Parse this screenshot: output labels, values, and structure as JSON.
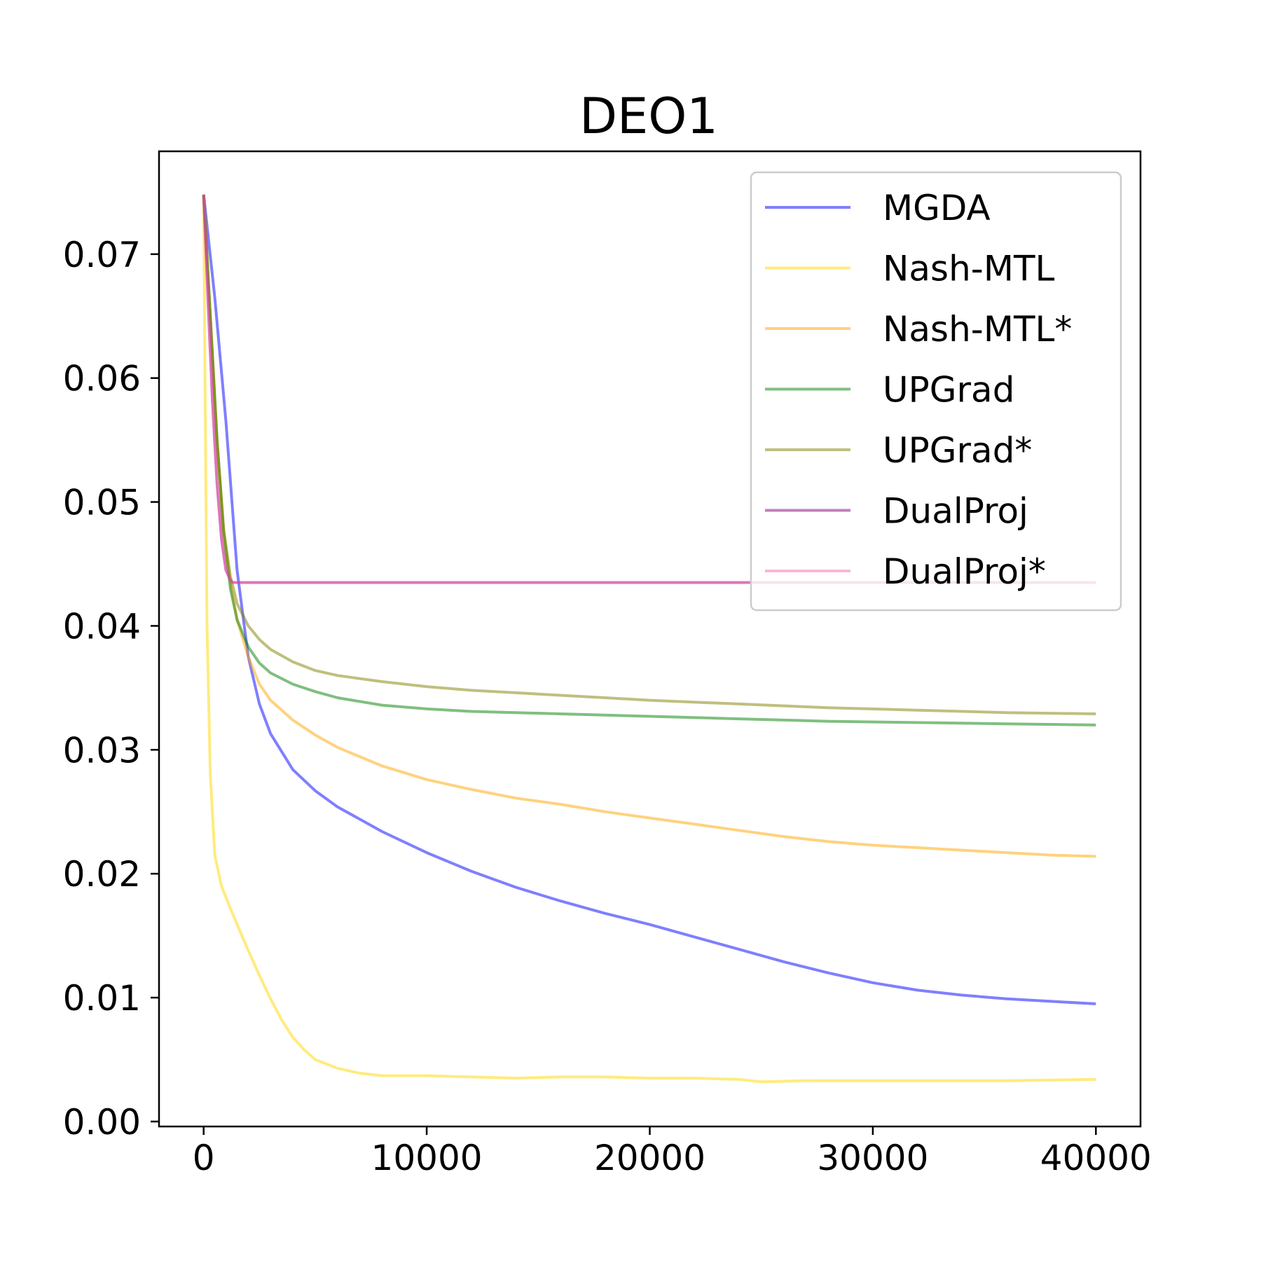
{
  "chart_data": {
    "type": "line",
    "title": "DEO1",
    "xlabel": "",
    "ylabel": "",
    "xlim": [
      -2000,
      42000
    ],
    "ylim": [
      -0.0004,
      0.0783
    ],
    "xticks": [
      0,
      10000,
      20000,
      30000,
      40000
    ],
    "xtick_labels": [
      "0",
      "10000",
      "20000",
      "30000",
      "40000"
    ],
    "yticks": [
      0.0,
      0.01,
      0.02,
      0.03,
      0.04,
      0.05,
      0.06,
      0.07
    ],
    "ytick_labels": [
      "0.00",
      "0.01",
      "0.02",
      "0.03",
      "0.04",
      "0.05",
      "0.06",
      "0.07"
    ],
    "grid": false,
    "legend_position": "top-right",
    "series": [
      {
        "name": "MGDA",
        "color": "#0000ff",
        "opacity": 0.5,
        "x": [
          0,
          500,
          1000,
          1500,
          2000,
          2500,
          3000,
          4000,
          5000,
          6000,
          8000,
          10000,
          12000,
          14000,
          16000,
          18000,
          20000,
          22000,
          24000,
          26000,
          28000,
          30000,
          32000,
          34000,
          36000,
          38000,
          40000
        ],
        "y": [
          0.0748,
          0.0665,
          0.0565,
          0.0445,
          0.0375,
          0.0337,
          0.0313,
          0.0284,
          0.0267,
          0.0254,
          0.0234,
          0.0217,
          0.0202,
          0.0189,
          0.0178,
          0.0168,
          0.0159,
          0.0149,
          0.0139,
          0.0129,
          0.012,
          0.0112,
          0.0106,
          0.0102,
          0.0099,
          0.0097,
          0.0095
        ]
      },
      {
        "name": "Nash-MTL",
        "color": "#ffd700",
        "opacity": 0.5,
        "x": [
          0,
          60,
          150,
          300,
          500,
          800,
          1200,
          1600,
          2000,
          2500,
          3000,
          3500,
          4000,
          4500,
          5000,
          6000,
          7000,
          8000,
          10000,
          12000,
          14000,
          16000,
          18000,
          20000,
          22000,
          24000,
          25000,
          27000,
          30000,
          33000,
          36000,
          40000
        ],
        "y": [
          0.0748,
          0.06,
          0.04,
          0.028,
          0.0215,
          0.019,
          0.0172,
          0.0155,
          0.0138,
          0.0118,
          0.0099,
          0.0082,
          0.0068,
          0.0058,
          0.005,
          0.0043,
          0.0039,
          0.0037,
          0.0037,
          0.0036,
          0.0035,
          0.0036,
          0.0036,
          0.0035,
          0.0035,
          0.0034,
          0.0032,
          0.0033,
          0.0033,
          0.0033,
          0.0033,
          0.0034
        ]
      },
      {
        "name": "Nash-MTL*",
        "color": "#ffa500",
        "opacity": 0.5,
        "x": [
          0,
          300,
          600,
          900,
          1200,
          1500,
          2000,
          2500,
          3000,
          4000,
          5000,
          6000,
          8000,
          10000,
          12000,
          14000,
          16000,
          18000,
          20000,
          22000,
          24000,
          26000,
          28000,
          30000,
          32000,
          34000,
          36000,
          38000,
          40000
        ],
        "y": [
          0.0748,
          0.065,
          0.055,
          0.0475,
          0.0435,
          0.0405,
          0.0375,
          0.0353,
          0.034,
          0.0324,
          0.0312,
          0.0302,
          0.0287,
          0.0276,
          0.0268,
          0.0261,
          0.0256,
          0.025,
          0.0245,
          0.024,
          0.0235,
          0.023,
          0.0226,
          0.0223,
          0.0221,
          0.0219,
          0.0217,
          0.0215,
          0.0214
        ]
      },
      {
        "name": "UPGrad",
        "color": "#008000",
        "opacity": 0.5,
        "x": [
          0,
          300,
          600,
          900,
          1200,
          1500,
          2000,
          2500,
          3000,
          4000,
          5000,
          6000,
          8000,
          10000,
          12000,
          14000,
          16000,
          18000,
          20000,
          24000,
          28000,
          32000,
          36000,
          40000
        ],
        "y": [
          0.0748,
          0.065,
          0.055,
          0.0475,
          0.043,
          0.0405,
          0.0383,
          0.037,
          0.0362,
          0.0353,
          0.0347,
          0.0342,
          0.0336,
          0.0333,
          0.0331,
          0.033,
          0.0329,
          0.0328,
          0.0327,
          0.0325,
          0.0323,
          0.0322,
          0.0321,
          0.032
        ]
      },
      {
        "name": "UPGrad*",
        "color": "#808000",
        "opacity": 0.5,
        "x": [
          0,
          300,
          600,
          900,
          1200,
          1500,
          2000,
          2500,
          3000,
          4000,
          5000,
          6000,
          8000,
          10000,
          12000,
          14000,
          16000,
          18000,
          20000,
          24000,
          28000,
          32000,
          36000,
          40000
        ],
        "y": [
          0.0748,
          0.065,
          0.055,
          0.0478,
          0.044,
          0.0418,
          0.04,
          0.0389,
          0.0381,
          0.0371,
          0.0364,
          0.036,
          0.0355,
          0.0351,
          0.0348,
          0.0346,
          0.0344,
          0.0342,
          0.034,
          0.0337,
          0.0334,
          0.0332,
          0.033,
          0.0329
        ]
      },
      {
        "name": "DualProj",
        "color": "#800080",
        "opacity": 0.5,
        "x": [
          0,
          200,
          400,
          600,
          800,
          1000,
          1200,
          1300,
          2000,
          10000,
          20000,
          30000,
          40000
        ],
        "y": [
          0.0748,
          0.066,
          0.058,
          0.0515,
          0.047,
          0.0445,
          0.0437,
          0.0435,
          0.0435,
          0.0435,
          0.0435,
          0.0435,
          0.0435
        ]
      },
      {
        "name": "DualProj*",
        "color": "#ff69b4",
        "opacity": 0.5,
        "x": [
          0,
          200,
          400,
          600,
          800,
          1000,
          1200,
          1300,
          2000,
          10000,
          20000,
          30000,
          40000
        ],
        "y": [
          0.0748,
          0.066,
          0.058,
          0.0515,
          0.047,
          0.0445,
          0.0437,
          0.0435,
          0.0435,
          0.0435,
          0.0435,
          0.0435,
          0.0435
        ]
      }
    ]
  }
}
